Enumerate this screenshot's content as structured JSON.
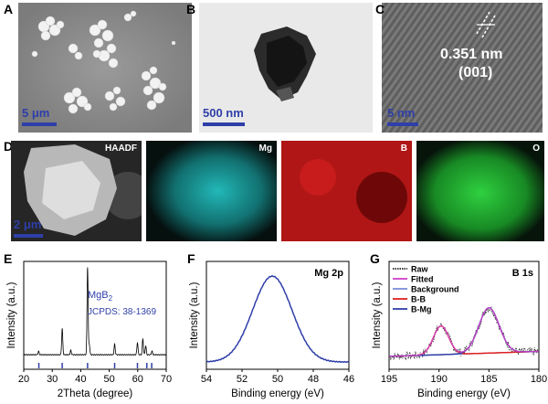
{
  "figure": {
    "panels": {
      "A": {
        "letter": "A",
        "scale_bar": "5 μm"
      },
      "B": {
        "letter": "B",
        "scale_bar": "500 nm"
      },
      "C": {
        "letter": "C",
        "scale_bar": "5 nm",
        "spacing": "0.351 nm",
        "plane": "(001)"
      },
      "D": {
        "letter": "D",
        "scale_bar": "2 μm",
        "maps": [
          "HAADF",
          "Mg",
          "B",
          "O"
        ]
      },
      "E": {
        "letter": "E",
        "annotation_phase": "MgB",
        "annotation_phase_sub": "2",
        "annotation_ref": "JCPDS: 38-1369"
      },
      "F": {
        "letter": "F",
        "annotation": "Mg 2p"
      },
      "G": {
        "letter": "G",
        "annotation": "B 1s"
      }
    },
    "colors": {
      "accent_blue": "#2f3fa8",
      "mg_map": "#22b8b8",
      "b_map": "#d82020",
      "o_map": "#22b030",
      "fit_magenta": "#d040c8",
      "fit_red": "#e02020",
      "fit_blue": "#2f3fa8",
      "background_line": "#7b8fd8"
    }
  },
  "chart_data": [
    {
      "type": "line",
      "panel": "E",
      "xlabel": "2Theta (degree)",
      "ylabel": "Intensity (a.u.)",
      "xlim": [
        20,
        70
      ],
      "xticks": [
        20,
        30,
        40,
        50,
        60,
        70
      ],
      "peaks": [
        {
          "x": 25.2,
          "height": 0.04
        },
        {
          "x": 33.5,
          "height": 0.3
        },
        {
          "x": 36.5,
          "height": 0.05
        },
        {
          "x": 42.4,
          "height": 1.0
        },
        {
          "x": 43.0,
          "height": 0.12
        },
        {
          "x": 51.9,
          "height": 0.12
        },
        {
          "x": 59.9,
          "height": 0.14
        },
        {
          "x": 61.8,
          "height": 0.18
        },
        {
          "x": 62.8,
          "height": 0.1
        },
        {
          "x": 65.0,
          "height": 0.04
        }
      ],
      "reference_lines": [
        25.3,
        33.5,
        42.4,
        51.9,
        59.9,
        63.2,
        64.9
      ]
    },
    {
      "type": "line",
      "panel": "F",
      "xlabel": "Binding energy (eV)",
      "ylabel": "Intensity (a.u.)",
      "xlim": [
        54,
        46
      ],
      "xticks": [
        54,
        52,
        50,
        48,
        46
      ],
      "series": [
        {
          "peak_center": 50.3,
          "fwhm": 2.0
        }
      ]
    },
    {
      "type": "line",
      "panel": "G",
      "xlabel": "Binding energy (eV)",
      "ylabel": "Intensity (a.u.)",
      "xlim": [
        195,
        180
      ],
      "xticks": [
        195,
        190,
        185,
        180
      ],
      "legend": [
        "Raw",
        "Fitted",
        "Background",
        "B-B",
        "B-Mg"
      ],
      "components": [
        {
          "name": "B-B",
          "center": 189.8,
          "fwhm": 1.8,
          "height": 0.35
        },
        {
          "name": "B-Mg",
          "center": 185.0,
          "fwhm": 2.4,
          "height": 0.55
        }
      ]
    }
  ]
}
